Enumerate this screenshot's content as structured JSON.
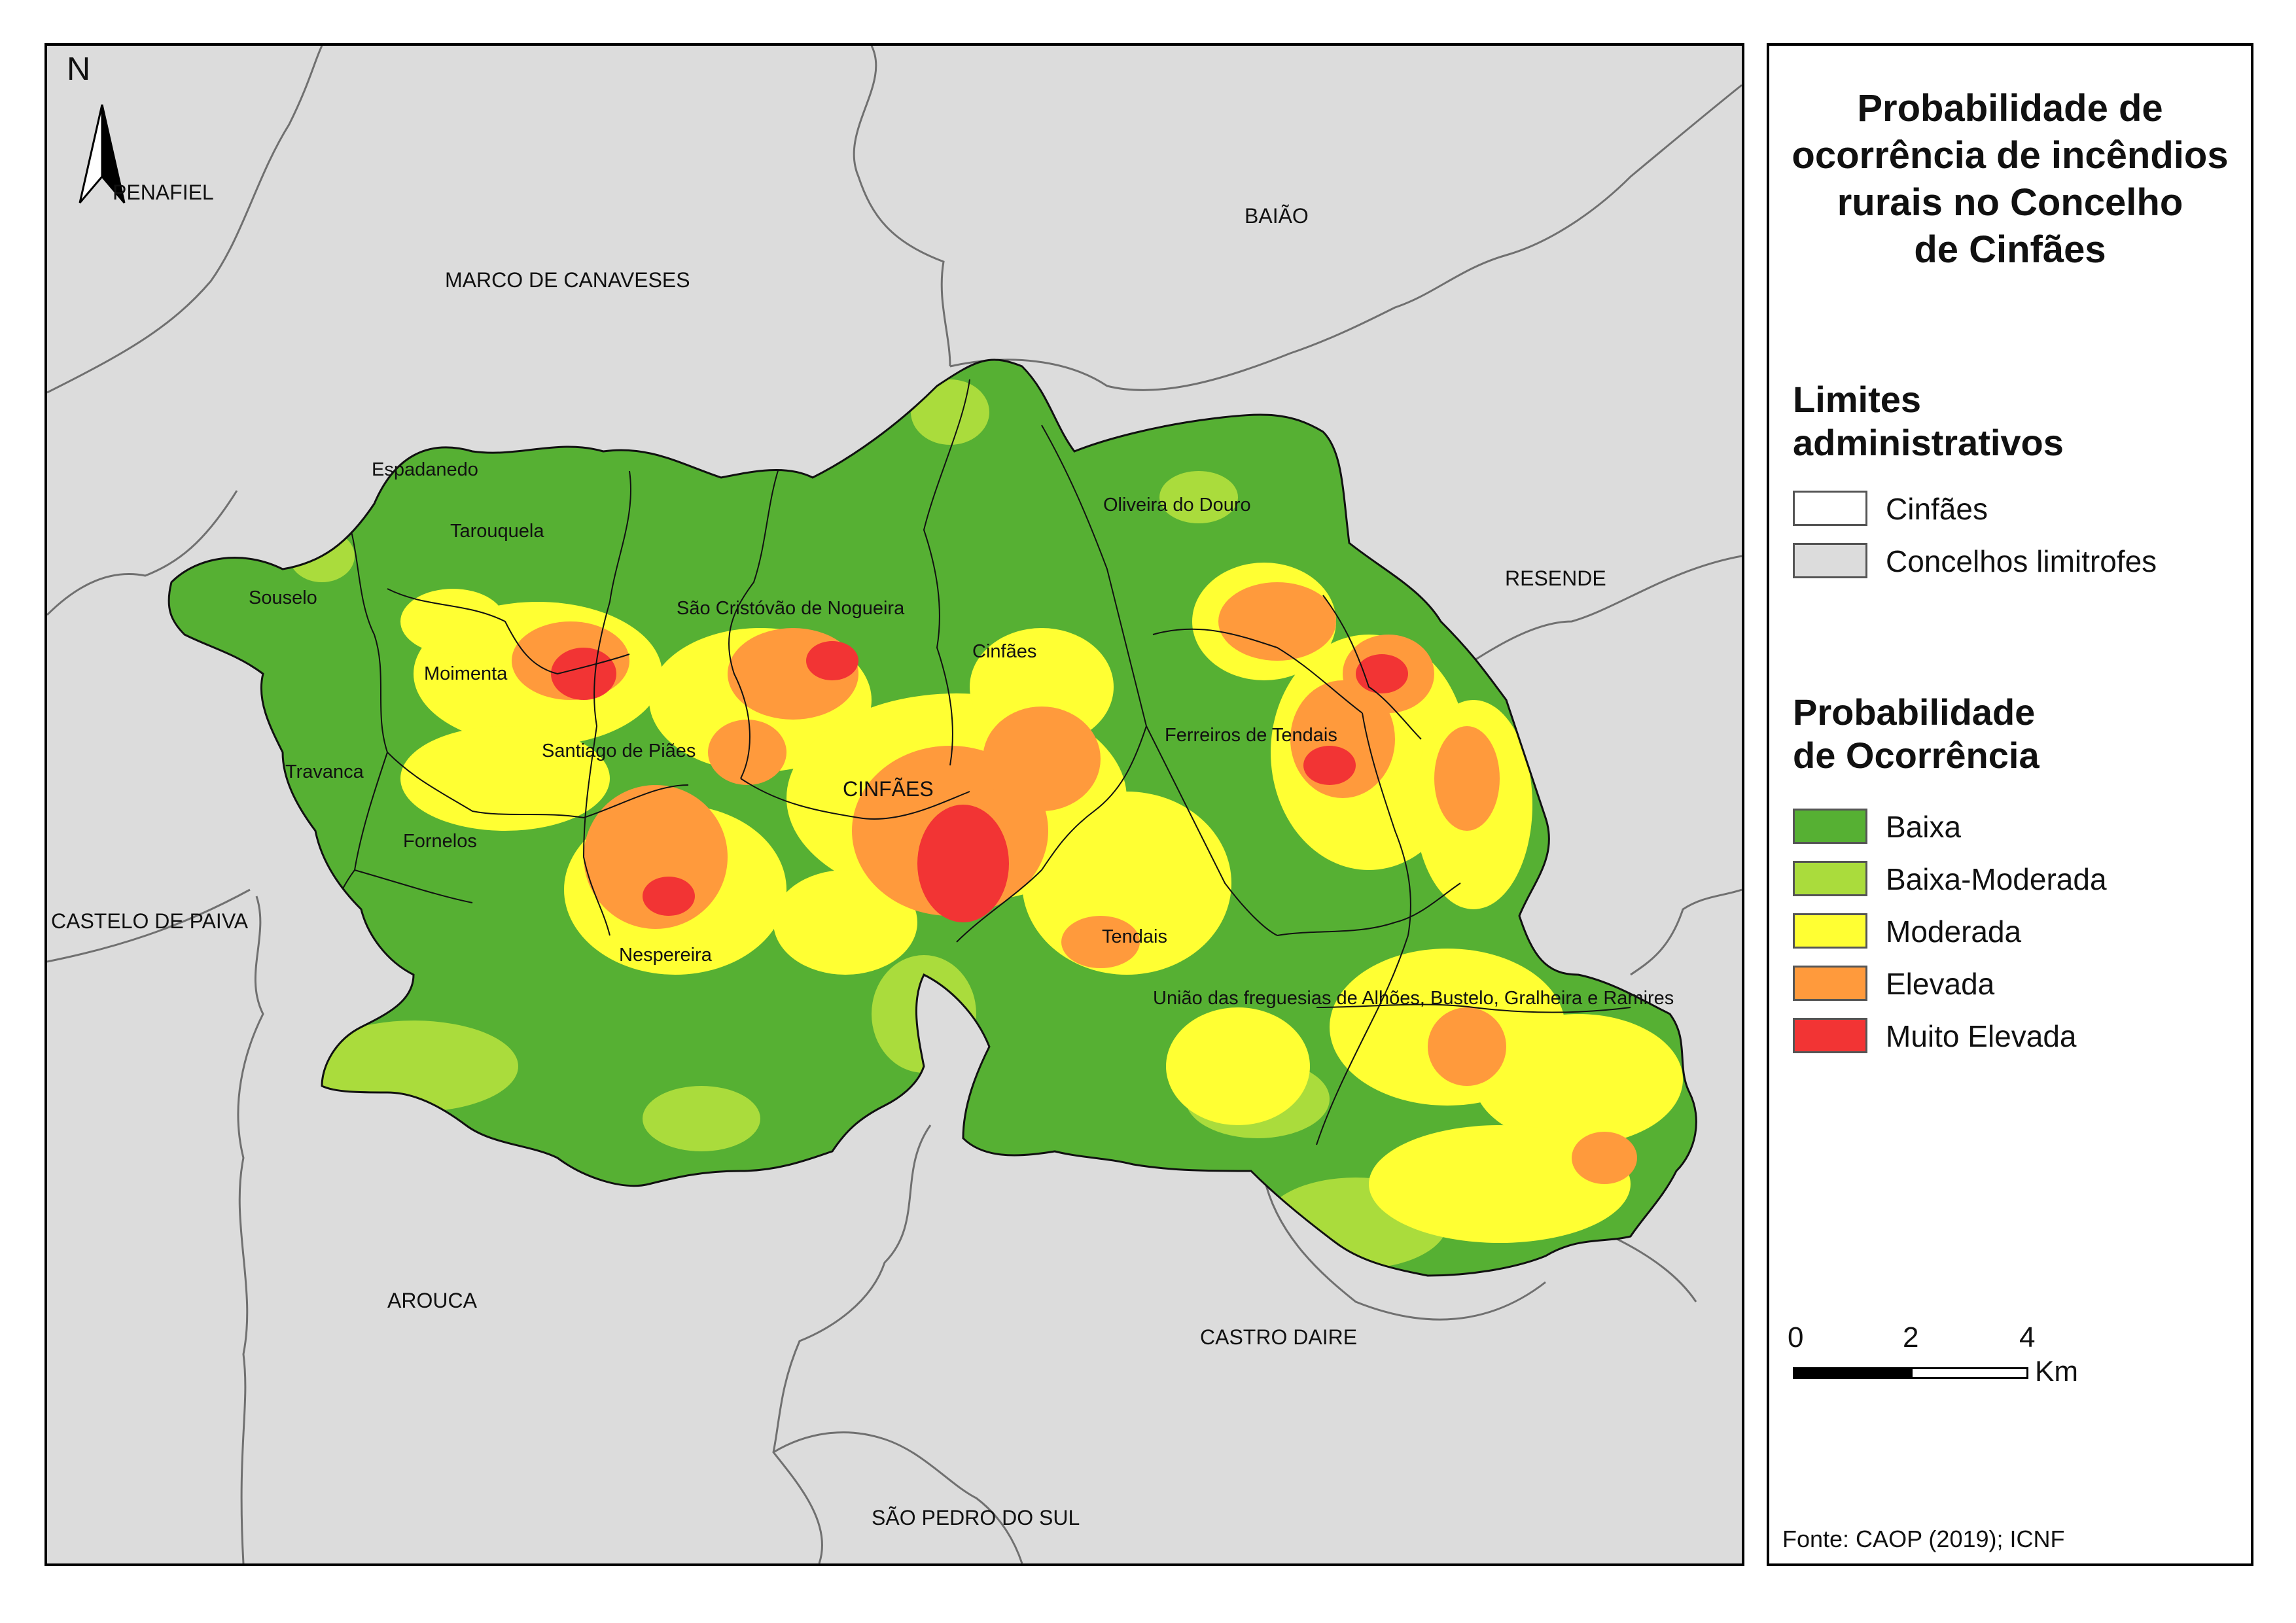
{
  "title": "Probabilidade de ocorrência de incêndios rurais no Concelho de Cinfães",
  "title_lines": [
    "Probabilidade de",
    "ocorrência de incêndios",
    "rurais no Concelho",
    "de Cinfães"
  ],
  "north_arrow": {
    "label": "N",
    "icon": "north-arrow-icon"
  },
  "neighbors": [
    {
      "key": "penafiel",
      "name": "PENAFIEL"
    },
    {
      "key": "marco",
      "name": "MARCO DE CANAVESES"
    },
    {
      "key": "baiao",
      "name": "BAIÃO"
    },
    {
      "key": "resende",
      "name": "RESENDE"
    },
    {
      "key": "castelo",
      "name": "CASTELO DE PAIVA"
    },
    {
      "key": "arouca",
      "name": "AROUCA"
    },
    {
      "key": "castro",
      "name": "CASTRO DAIRE"
    },
    {
      "key": "spedro",
      "name": "SÃO PEDRO DO SUL"
    }
  ],
  "municipality_seat": "CINFÃES",
  "parishes": [
    "Espadanedo",
    "Tarouquela",
    "Souselo",
    "Moimenta",
    "Travanca",
    "Fornelos",
    "Santiago de Piães",
    "São Cristóvão de Nogueira",
    "Cinfães",
    "Nespereira",
    "Oliveira do Douro",
    "Ferreiros de Tendais",
    "Tendais",
    "União das freguesias de Alhões, Bustelo, Gralheira e Ramires"
  ],
  "legend": {
    "admin_title_lines": [
      "Limites",
      "administrativos"
    ],
    "admin_items": [
      {
        "label": "Cinfães",
        "color": "#ffffff"
      },
      {
        "label": "Concelhos limitrofes",
        "color": "#dcdcdc"
      }
    ],
    "prob_title_lines": [
      "Probabilidade",
      "de Ocorrência"
    ],
    "prob_items": [
      {
        "label": "Baixa",
        "color": "#56b033"
      },
      {
        "label": "Baixa-Moderada",
        "color": "#aadc3c"
      },
      {
        "label": "Moderada",
        "color": "#ffff33"
      },
      {
        "label": "Elevada",
        "color": "#ff9a3c"
      },
      {
        "label": "Muito Elevada",
        "color": "#f23434"
      }
    ]
  },
  "scale_bar": {
    "ticks": [
      "0",
      "2",
      "4"
    ],
    "unit": "Km"
  },
  "source": "Fonte: CAOP (2019); ICNF"
}
